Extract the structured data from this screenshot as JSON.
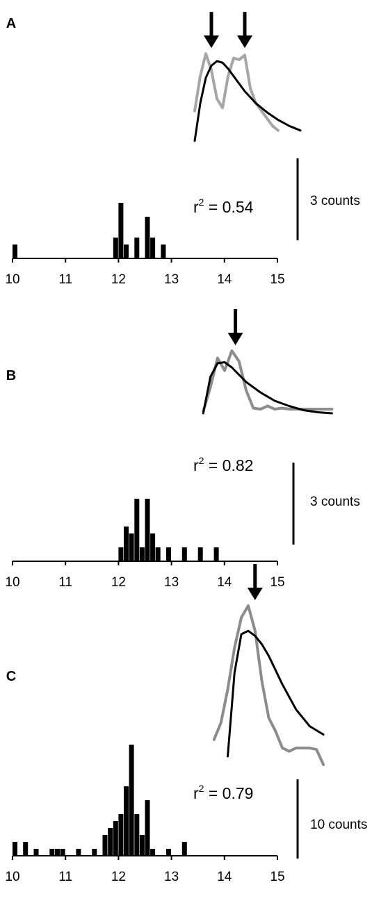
{
  "chart_data": [
    {
      "panel": "A",
      "type": "bar",
      "xlim": [
        10,
        15
      ],
      "x_ticks": [
        "10",
        "11",
        "12",
        "13",
        "14",
        "15"
      ],
      "bin_width": 0.1,
      "histogram": [
        {
          "x": 10.05,
          "count": 1
        },
        {
          "x": 11.95,
          "count": 1.5
        },
        {
          "x": 12.05,
          "count": 4
        },
        {
          "x": 12.15,
          "count": 1
        },
        {
          "x": 12.35,
          "count": 1.5
        },
        {
          "x": 12.55,
          "count": 3
        },
        {
          "x": 12.65,
          "count": 1.5
        },
        {
          "x": 12.85,
          "count": 1
        }
      ],
      "inset": {
        "measured_line": {
          "color": "#a6a6a6",
          "x": [
            13.5,
            13.6,
            13.7,
            13.8,
            13.9,
            14.0,
            14.1,
            14.2,
            14.3,
            14.4,
            14.5,
            14.6,
            14.7,
            14.8,
            14.9,
            15.0
          ],
          "y": [
            5.0,
            7.3,
            8.8,
            7.7,
            5.8,
            5.2,
            7.3,
            8.5,
            8.4,
            8.7,
            6.5,
            5.5,
            5.0,
            4.5,
            4.0,
            3.7
          ]
        },
        "fit_line": {
          "color": "#000000",
          "x": [
            13.5,
            13.6,
            13.7,
            13.8,
            13.9,
            14.0,
            14.1,
            14.2,
            14.3,
            14.4,
            14.6,
            14.8,
            15.0,
            15.2,
            15.4
          ],
          "y": [
            3.0,
            5.5,
            7.2,
            8.0,
            8.3,
            8.2,
            7.8,
            7.3,
            6.8,
            6.3,
            5.5,
            4.9,
            4.4,
            4.0,
            3.7
          ]
        },
        "arrows_x": [
          13.8,
          14.4
        ]
      },
      "r2_prefix": "r",
      "r2_exp": "2",
      "r2_value": " = 0.54",
      "scale_label": "3 counts"
    },
    {
      "panel": "B",
      "type": "bar",
      "xlim": [
        10,
        15
      ],
      "x_ticks": [
        "10",
        "11",
        "12",
        "13",
        "14",
        "15"
      ],
      "bin_width": 0.1,
      "histogram": [
        {
          "x": 12.05,
          "count": 1
        },
        {
          "x": 12.15,
          "count": 2.5
        },
        {
          "x": 12.25,
          "count": 2
        },
        {
          "x": 12.35,
          "count": 4.5
        },
        {
          "x": 12.45,
          "count": 1
        },
        {
          "x": 12.55,
          "count": 4.5
        },
        {
          "x": 12.65,
          "count": 2
        },
        {
          "x": 12.75,
          "count": 1
        },
        {
          "x": 12.95,
          "count": 1
        },
        {
          "x": 13.25,
          "count": 1
        },
        {
          "x": 13.55,
          "count": 1
        },
        {
          "x": 13.85,
          "count": 1
        }
      ],
      "inset": {
        "measured_line": {
          "color": "#8c8c8c",
          "x": [
            13.6,
            13.7,
            13.8,
            13.9,
            14.0,
            14.1,
            14.2,
            14.3,
            14.4,
            14.5,
            14.6,
            14.7,
            14.8,
            15.0,
            15.2,
            15.4
          ],
          "y": [
            3.2,
            5.5,
            8.3,
            7.1,
            9.0,
            8.0,
            5.2,
            3.5,
            3.4,
            3.7,
            3.4,
            3.5,
            3.4,
            3.4,
            3.4,
            3.4
          ]
        },
        "fit_line": {
          "color": "#000000",
          "x": [
            13.6,
            13.7,
            13.8,
            13.9,
            14.0,
            14.1,
            14.2,
            14.4,
            14.6,
            14.8,
            15.0,
            15.2,
            15.4
          ],
          "y": [
            3.0,
            6.5,
            7.8,
            7.9,
            7.4,
            6.7,
            6.0,
            5.0,
            4.2,
            3.7,
            3.3,
            3.1,
            3.0
          ]
        },
        "arrows_x": [
          14.05
        ]
      },
      "r2_prefix": "r",
      "r2_exp": "2",
      "r2_value": " = 0.82",
      "scale_label": "3 counts"
    },
    {
      "panel": "C",
      "type": "bar",
      "xlim": [
        10,
        15
      ],
      "x_ticks": [
        "10",
        "11",
        "12",
        "13",
        "14",
        "15"
      ],
      "bin_width": 0.1,
      "histogram": [
        {
          "x": 10.05,
          "count": 1
        },
        {
          "x": 10.25,
          "count": 1
        },
        {
          "x": 10.45,
          "count": 0.5
        },
        {
          "x": 10.75,
          "count": 0.5
        },
        {
          "x": 10.85,
          "count": 0.5
        },
        {
          "x": 10.95,
          "count": 0.5
        },
        {
          "x": 11.25,
          "count": 0.5
        },
        {
          "x": 11.55,
          "count": 0.5
        },
        {
          "x": 11.75,
          "count": 1.5
        },
        {
          "x": 11.85,
          "count": 2
        },
        {
          "x": 11.95,
          "count": 2.5
        },
        {
          "x": 12.05,
          "count": 3
        },
        {
          "x": 12.15,
          "count": 5
        },
        {
          "x": 12.25,
          "count": 8
        },
        {
          "x": 12.35,
          "count": 3
        },
        {
          "x": 12.45,
          "count": 1.5
        },
        {
          "x": 12.55,
          "count": 4
        },
        {
          "x": 12.65,
          "count": 0.5
        },
        {
          "x": 12.95,
          "count": 0.5
        },
        {
          "x": 13.25,
          "count": 1
        }
      ],
      "inset": {
        "measured_line": {
          "color": "#8c8c8c",
          "x": [
            13.6,
            13.7,
            13.8,
            13.9,
            14.0,
            14.1,
            14.2,
            14.3,
            14.4,
            14.5,
            14.6,
            14.7,
            14.8,
            14.9,
            15.0,
            15.1,
            15.2
          ],
          "y": [
            2.5,
            3.5,
            5.5,
            8.0,
            9.8,
            10.5,
            9.0,
            6.0,
            3.8,
            3.0,
            2.0,
            1.8,
            2.0,
            2.0,
            2.0,
            1.9,
            1.0
          ]
        },
        "fit_line": {
          "color": "#000000",
          "x": [
            13.8,
            13.9,
            14.0,
            14.1,
            14.2,
            14.3,
            14.4,
            14.6,
            14.8,
            15.0,
            15.2
          ],
          "y": [
            1.5,
            6.5,
            8.8,
            9.0,
            8.7,
            8.2,
            7.5,
            5.8,
            4.3,
            3.3,
            2.8
          ]
        },
        "arrows_x": [
          14.2
        ]
      },
      "r2_prefix": "r",
      "r2_exp": "2",
      "r2_value": " = 0.79",
      "scale_label": "10 counts"
    }
  ]
}
